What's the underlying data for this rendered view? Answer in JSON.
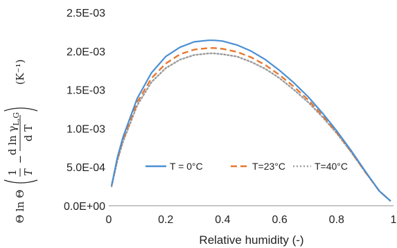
{
  "chart_data": {
    "type": "line",
    "title": "",
    "xlabel": "Relative humidity (-)",
    "ylabel": "Θ ln Θ (1/T − d ln γL,G / d T)   (K⁻¹)",
    "xlim": [
      0,
      1
    ],
    "ylim": [
      0,
      0.0025
    ],
    "x_ticks": [
      "0",
      "0.2",
      "0.4",
      "0.6",
      "0.8",
      "1"
    ],
    "y_ticks": [
      "0.0E+00",
      "5.0E-04",
      "1.0E-03",
      "1.5E-03",
      "2.0E-03",
      "2.5E-03"
    ],
    "grid": false,
    "legend_position": "inside-bottom-center",
    "series": [
      {
        "name": "T = 0°C",
        "color": "#4a8fd4",
        "style": "solid",
        "x": [
          0.01,
          0.03,
          0.05,
          0.1,
          0.15,
          0.2,
          0.25,
          0.3,
          0.35,
          0.37,
          0.4,
          0.45,
          0.5,
          0.55,
          0.6,
          0.65,
          0.7,
          0.75,
          0.8,
          0.85,
          0.9,
          0.95,
          0.99
        ],
        "y": [
          0.00026,
          0.00062,
          0.00089,
          0.00139,
          0.00172,
          0.00193,
          0.00205,
          0.00212,
          0.00214,
          0.00214,
          0.00213,
          0.00208,
          0.002,
          0.00189,
          0.00175,
          0.00159,
          0.00141,
          0.0012,
          0.00097,
          0.00072,
          0.00045,
          0.00019,
          6e-05
        ]
      },
      {
        "name": "T=23°C",
        "color": "#e8772e",
        "style": "dashed",
        "x": [
          0.01,
          0.03,
          0.05,
          0.1,
          0.15,
          0.2,
          0.25,
          0.3,
          0.35,
          0.37,
          0.4,
          0.45,
          0.5,
          0.55,
          0.6,
          0.65,
          0.7,
          0.75,
          0.8,
          0.85,
          0.9,
          0.95,
          0.99
        ],
        "y": [
          0.00026,
          0.0006,
          0.00086,
          0.00134,
          0.00165,
          0.00184,
          0.00196,
          0.00202,
          0.00204,
          0.00204,
          0.00203,
          0.00199,
          0.00192,
          0.00182,
          0.00169,
          0.00154,
          0.00137,
          0.00117,
          0.00095,
          0.00071,
          0.00044,
          0.00019,
          6e-05
        ]
      },
      {
        "name": "T=40°C",
        "color": "#9a9a9a",
        "style": "dotted",
        "x": [
          0.01,
          0.03,
          0.05,
          0.1,
          0.15,
          0.2,
          0.25,
          0.3,
          0.35,
          0.37,
          0.4,
          0.45,
          0.5,
          0.55,
          0.6,
          0.65,
          0.7,
          0.75,
          0.8,
          0.85,
          0.9,
          0.95,
          0.99
        ],
        "y": [
          0.00025,
          0.00058,
          0.00083,
          0.0013,
          0.0016,
          0.00178,
          0.00189,
          0.00195,
          0.00197,
          0.00197,
          0.00196,
          0.00193,
          0.00186,
          0.00177,
          0.00165,
          0.0015,
          0.00134,
          0.00115,
          0.00094,
          0.0007,
          0.00044,
          0.00019,
          6e-05
        ]
      }
    ]
  },
  "ylabel_parts": {
    "theta_ln_theta": "Θ ln Θ",
    "frac1_num": "1",
    "frac1_den": "T",
    "minus": "−",
    "frac2_num": "d ln γ",
    "frac2_sub": "L,G",
    "frac2_den": "d T",
    "unit": "(K⁻¹)"
  }
}
